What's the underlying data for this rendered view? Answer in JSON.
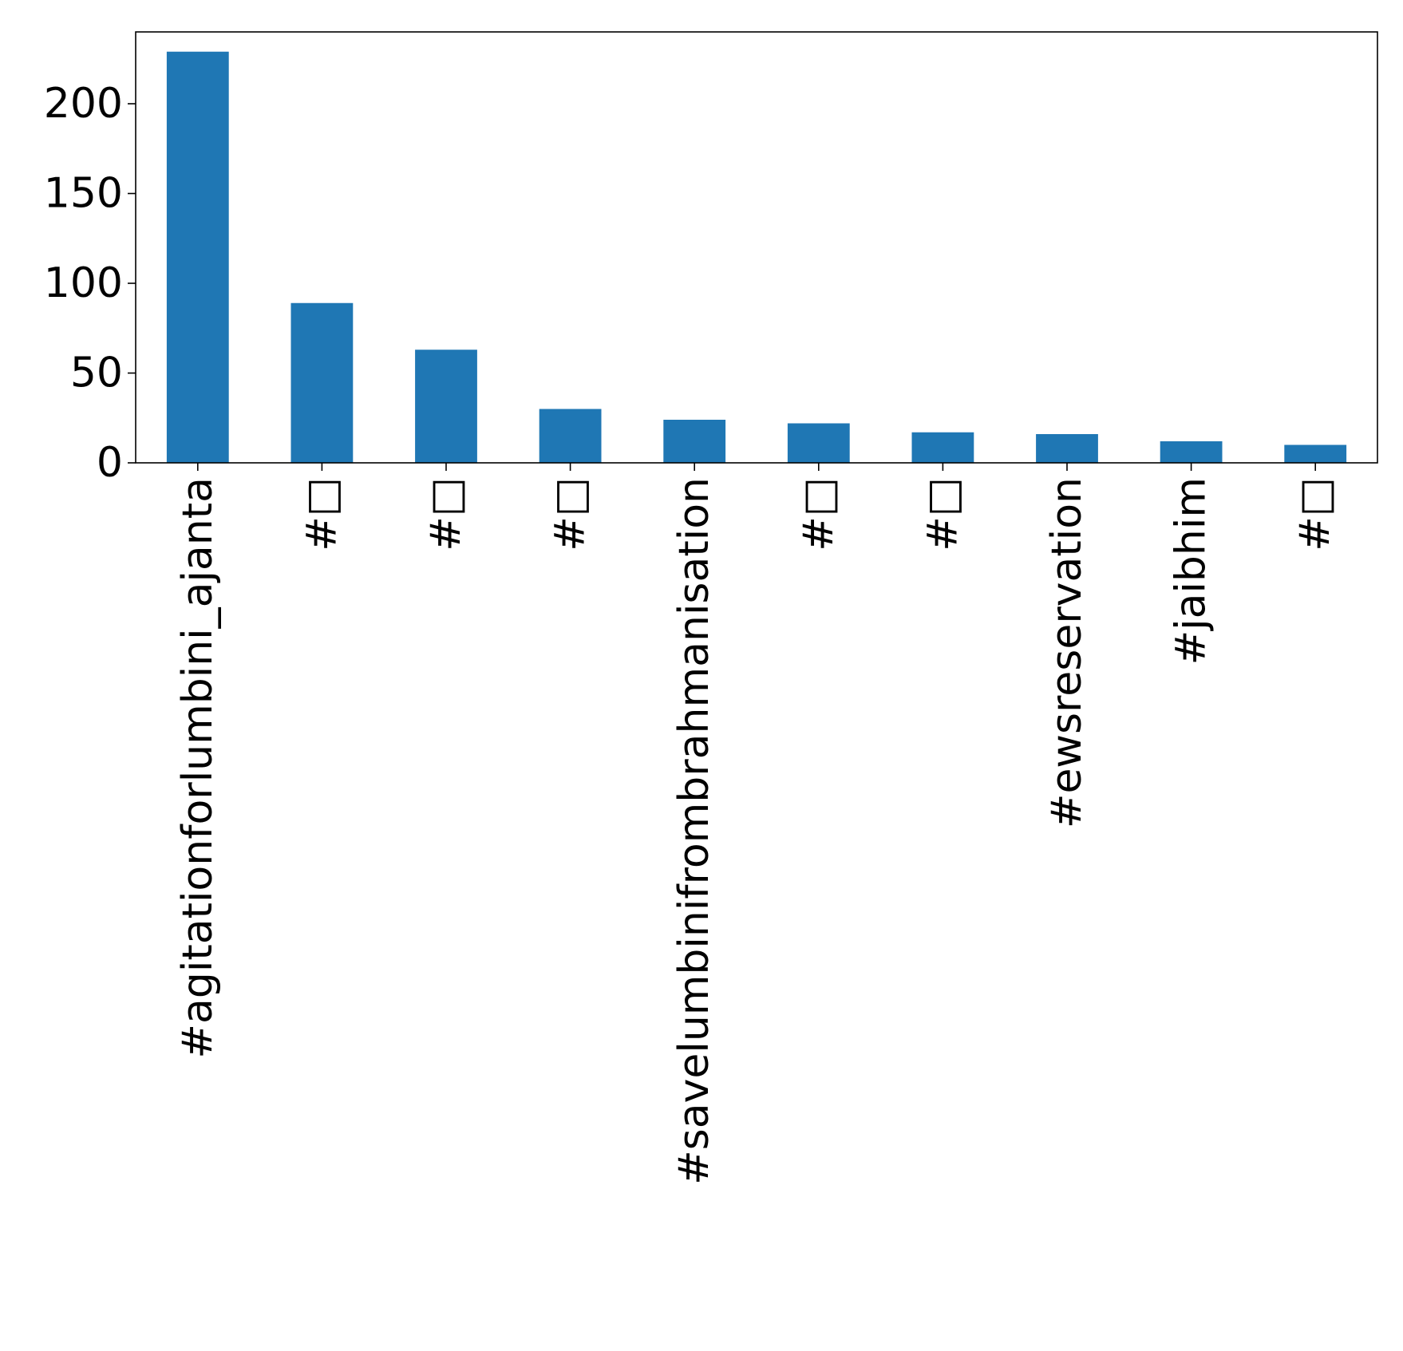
{
  "chart_data": {
    "type": "bar",
    "title": "",
    "xlabel": "",
    "ylabel": "",
    "categories": [
      "#agitationforlumbini_ajanta",
      "#□",
      "#□",
      "#□",
      "#savelumbinifrombrahmanisation",
      "#□",
      "#□",
      "#ewsreservation",
      "#jaibhim",
      "#□"
    ],
    "values": [
      229,
      89,
      63,
      30,
      24,
      22,
      17,
      16,
      12,
      10
    ],
    "ylim": [
      0,
      240
    ],
    "yticks": [
      0,
      50,
      100,
      150,
      200
    ],
    "ytick_labels": [
      "0",
      "50",
      "100",
      "150",
      "200"
    ],
    "bar_color": "#1f77b4",
    "grid": false,
    "legend": "none"
  }
}
